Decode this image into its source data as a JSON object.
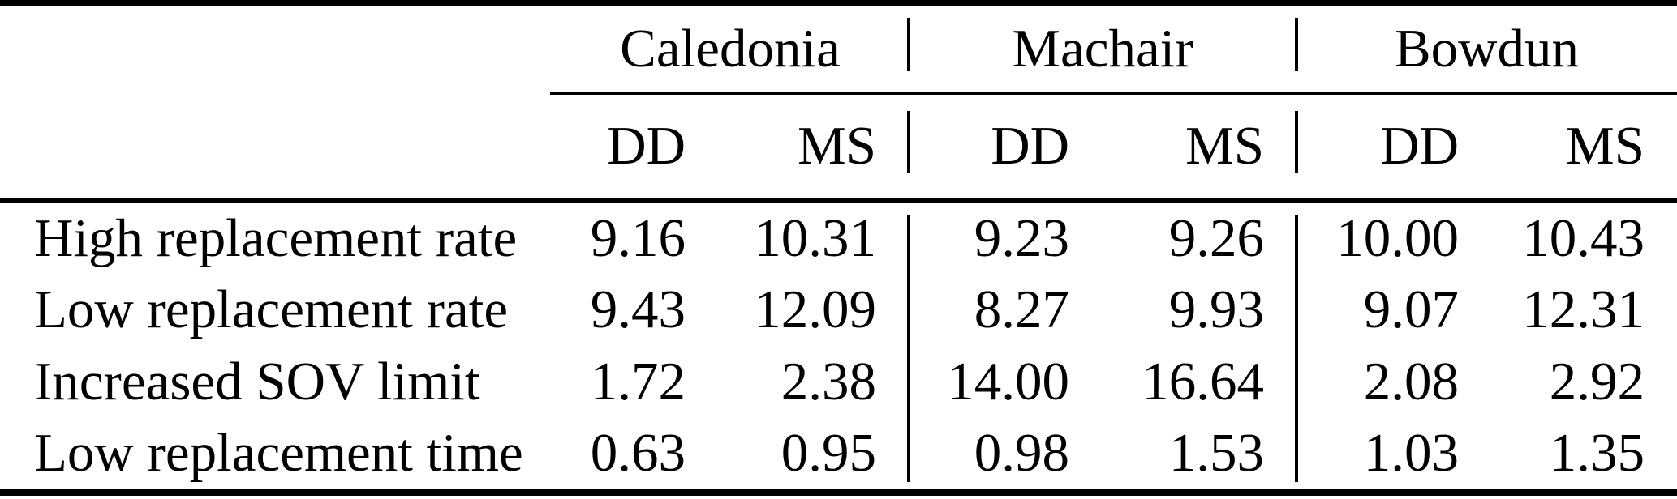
{
  "table": {
    "groups": [
      {
        "label": "Caledonia"
      },
      {
        "label": "Machair"
      },
      {
        "label": "Bowdun"
      }
    ],
    "sub_headers": [
      "DD",
      "MS",
      "DD",
      "MS",
      "DD",
      "MS"
    ],
    "rows": [
      {
        "label": "High replacement rate",
        "values": [
          "9.16",
          "10.31",
          "9.23",
          "9.26",
          "10.00",
          "10.43"
        ]
      },
      {
        "label": "Low replacement rate",
        "values": [
          "9.43",
          "12.09",
          "8.27",
          "9.93",
          "9.07",
          "12.31"
        ]
      },
      {
        "label": "Increased SOV limit",
        "values": [
          "1.72",
          "2.38",
          "14.00",
          "16.64",
          "2.08",
          "2.92"
        ]
      },
      {
        "label": "Low replacement time",
        "values": [
          "0.63",
          "0.95",
          "0.98",
          "1.53",
          "1.03",
          "1.35"
        ]
      }
    ]
  },
  "colors": {
    "text": "#000000",
    "background": "#ffffff",
    "rule": "#000000"
  },
  "chart_data": {
    "type": "table",
    "column_groups": [
      "Caledonia",
      "Machair",
      "Bowdun"
    ],
    "columns": [
      "",
      "Caledonia DD",
      "Caledonia MS",
      "Machair DD",
      "Machair MS",
      "Bowdun DD",
      "Bowdun MS"
    ],
    "rows": [
      [
        "High replacement rate",
        9.16,
        10.31,
        9.23,
        9.26,
        10.0,
        10.43
      ],
      [
        "Low replacement rate",
        9.43,
        12.09,
        8.27,
        9.93,
        9.07,
        12.31
      ],
      [
        "Increased SOV limit",
        1.72,
        2.38,
        14.0,
        16.64,
        2.08,
        2.92
      ],
      [
        "Low replacement time",
        0.63,
        0.95,
        0.98,
        1.53,
        1.03,
        1.35
      ]
    ]
  }
}
